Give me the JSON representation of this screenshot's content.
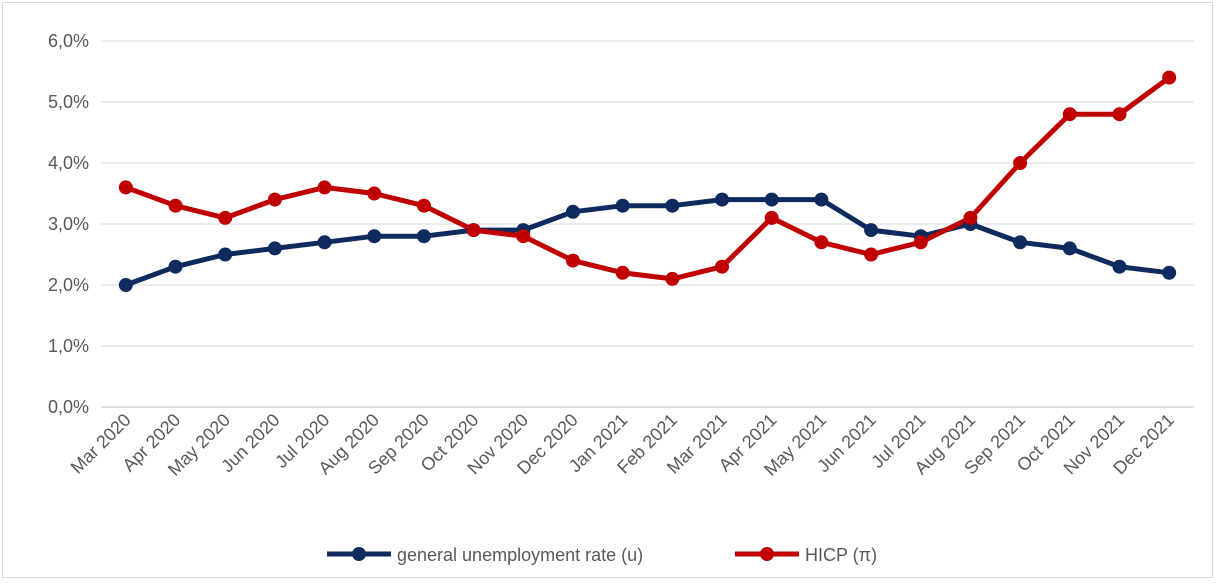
{
  "chart_data": {
    "type": "line",
    "title": "",
    "xlabel": "",
    "ylabel": "",
    "ylim": [
      0,
      6
    ],
    "y_ticks": [
      0,
      1,
      2,
      3,
      4,
      5,
      6
    ],
    "y_tick_labels": [
      "0,0%",
      "1,0%",
      "2,0%",
      "3,0%",
      "4,0%",
      "5,0%",
      "6,0%"
    ],
    "grid": true,
    "legend_position": "bottom",
    "categories": [
      "Mar 2020",
      "Apr 2020",
      "May 2020",
      "Jun 2020",
      "Jul 2020",
      "Aug 2020",
      "Sep 2020",
      "Oct 2020",
      "Nov 2020",
      "Dec 2020",
      "Jan 2021",
      "Feb 2021",
      "Mar 2021",
      "Apr 2021",
      "May 2021",
      "Jun 2021",
      "Jul 2021",
      "Aug 2021",
      "Sep 2021",
      "Oct 2021",
      "Nov 2021",
      "Dec 2021"
    ],
    "series": [
      {
        "name": "general unemployment rate (u)",
        "color": "#0e2a5e",
        "values": [
          2.0,
          2.3,
          2.5,
          2.6,
          2.7,
          2.8,
          2.8,
          2.9,
          2.9,
          3.2,
          3.3,
          3.3,
          3.4,
          3.4,
          3.4,
          2.9,
          2.8,
          3.0,
          2.7,
          2.6,
          2.3,
          2.2
        ]
      },
      {
        "name": "HICP (π)",
        "color": "#c00000",
        "values": [
          3.6,
          3.3,
          3.1,
          3.4,
          3.6,
          3.5,
          3.3,
          2.9,
          2.8,
          2.4,
          2.2,
          2.1,
          2.3,
          3.1,
          2.7,
          2.5,
          2.7,
          3.1,
          4.0,
          4.8,
          4.8,
          5.4
        ]
      }
    ]
  }
}
